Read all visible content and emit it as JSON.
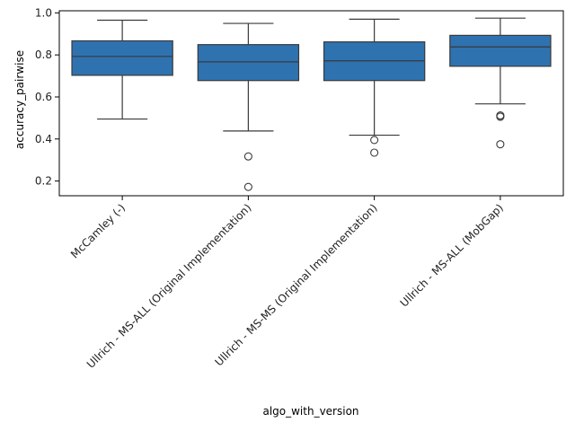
{
  "chart_data": {
    "type": "box",
    "xlabel": "algo_with_version",
    "ylabel": "accuracy_pairwise",
    "ylim": [
      0.13,
      1.01
    ],
    "yticks": [
      "0.2",
      "0.4",
      "0.6",
      "0.8",
      "1.0"
    ],
    "grid": false,
    "box_color": "#2f72b0",
    "edge_color": "#3a3a3a",
    "categories": [
      "McCamley (-)",
      "Ullrich - MS-ALL (Original Implementation)",
      "Ullrich - MS-MS (Original Implementation)",
      "Ullrich - MS-ALL (MobGap)"
    ],
    "boxes": [
      {
        "whisker_low": 0.495,
        "q1": 0.703,
        "median": 0.793,
        "q3": 0.867,
        "whisker_high": 0.965,
        "outliers": []
      },
      {
        "whisker_low": 0.438,
        "q1": 0.678,
        "median": 0.767,
        "q3": 0.849,
        "whisker_high": 0.95,
        "outliers": [
          0.317,
          0.172
        ]
      },
      {
        "whisker_low": 0.418,
        "q1": 0.678,
        "median": 0.772,
        "q3": 0.862,
        "whisker_high": 0.97,
        "outliers": [
          0.395,
          0.335
        ]
      },
      {
        "whisker_low": 0.567,
        "q1": 0.746,
        "median": 0.838,
        "q3": 0.893,
        "whisker_high": 0.975,
        "outliers": [
          0.512,
          0.506,
          0.375
        ]
      }
    ]
  }
}
